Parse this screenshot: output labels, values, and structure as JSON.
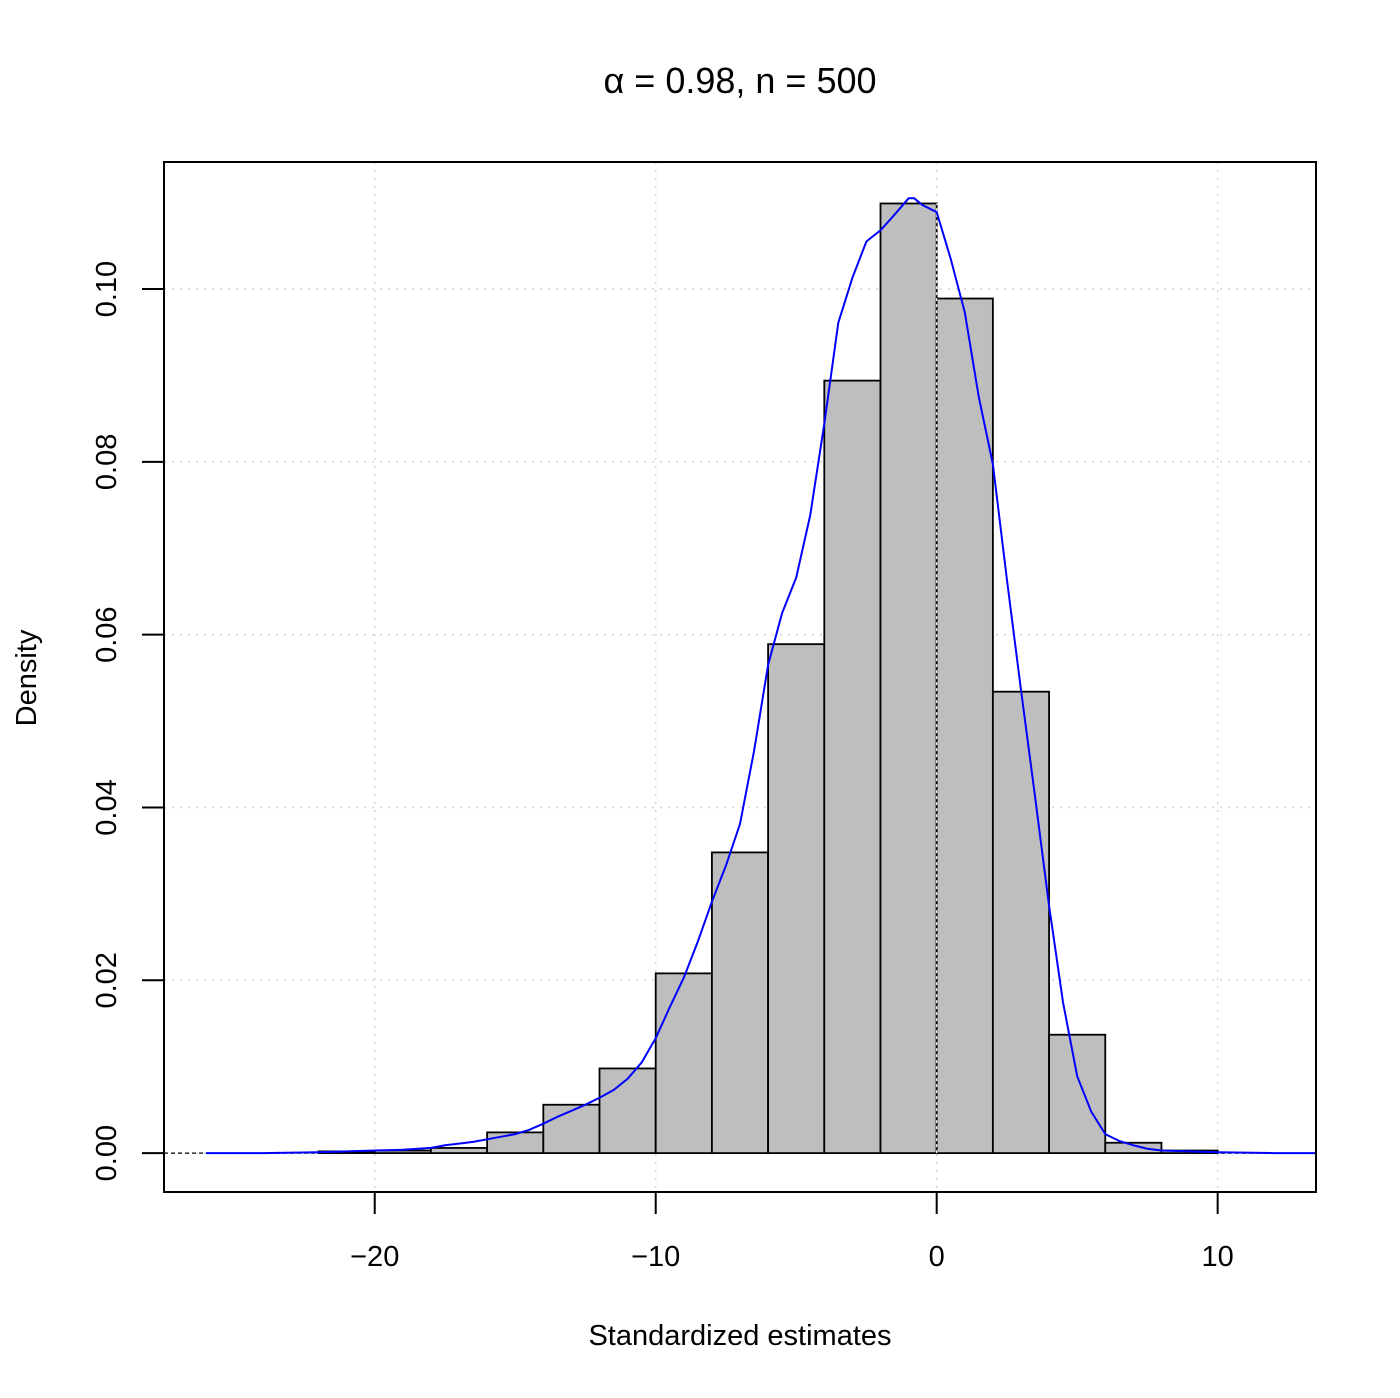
{
  "chart_data": {
    "type": "bar",
    "title": "α = 0.98, n = 500",
    "xlabel": "Standardized estimates",
    "ylabel": "Density",
    "xlim": [
      -27.5,
      13.5
    ],
    "ylim": [
      -0.0045,
      0.1147
    ],
    "x_ticks": [
      -20,
      -10,
      0,
      10
    ],
    "x_tick_labels": [
      "−20",
      "−10",
      "0",
      "10"
    ],
    "y_ticks": [
      0.0,
      0.02,
      0.04,
      0.06,
      0.08,
      0.1
    ],
    "y_tick_labels": [
      "0.00",
      "0.02",
      "0.04",
      "0.06",
      "0.08",
      "0.10"
    ],
    "grid": true,
    "bar_fill": "#bebebe",
    "bins": [
      {
        "x0": -22,
        "x1": -20,
        "density": 0.0002
      },
      {
        "x0": -20,
        "x1": -18,
        "density": 0.0003
      },
      {
        "x0": -18,
        "x1": -16,
        "density": 0.0006
      },
      {
        "x0": -16,
        "x1": -14,
        "density": 0.0024
      },
      {
        "x0": -14,
        "x1": -12,
        "density": 0.0056
      },
      {
        "x0": -12,
        "x1": -10,
        "density": 0.0098
      },
      {
        "x0": -10,
        "x1": -8,
        "density": 0.0208
      },
      {
        "x0": -8,
        "x1": -6,
        "density": 0.0348
      },
      {
        "x0": -6,
        "x1": -4,
        "density": 0.0589
      },
      {
        "x0": -4,
        "x1": -2,
        "density": 0.0894
      },
      {
        "x0": -2,
        "x1": 0,
        "density": 0.1099
      },
      {
        "x0": 0,
        "x1": 2,
        "density": 0.0989
      },
      {
        "x0": 2,
        "x1": 4,
        "density": 0.0534
      },
      {
        "x0": 4,
        "x1": 6,
        "density": 0.0137
      },
      {
        "x0": 6,
        "x1": 8,
        "density": 0.0012
      },
      {
        "x0": 8,
        "x1": 10,
        "density": 0.0003
      }
    ],
    "density_line": {
      "color": "#0000ff",
      "x": [
        -26,
        -24,
        -22,
        -21,
        -20,
        -19,
        -18,
        -17.5,
        -17,
        -16.5,
        -16,
        -15.5,
        -15,
        -14.5,
        -14,
        -13.5,
        -13,
        -12.5,
        -12,
        -11.5,
        -11,
        -10.5,
        -10,
        -9.5,
        -9,
        -8.5,
        -8,
        -7.5,
        -7,
        -6.5,
        -6,
        -5.5,
        -5,
        -4.5,
        -4,
        -3.5,
        -3,
        -2.5,
        -2,
        -1.5,
        -1,
        -0.8,
        -0.5,
        0,
        0.5,
        1,
        1.5,
        2,
        2.5,
        3,
        3.5,
        4,
        4.5,
        5,
        5.5,
        6,
        6.5,
        7,
        7.5,
        8,
        9,
        10,
        12,
        13.5
      ],
      "y": [
        0,
        0,
        0.0001,
        0.0002,
        0.0003,
        0.0004,
        0.0006,
        0.0009,
        0.0011,
        0.0013,
        0.0016,
        0.0019,
        0.0022,
        0.0027,
        0.0034,
        0.0042,
        0.0049,
        0.0056,
        0.0064,
        0.0073,
        0.0086,
        0.0105,
        0.0133,
        0.0169,
        0.0203,
        0.0245,
        0.0291,
        0.0333,
        0.0381,
        0.0465,
        0.0565,
        0.0625,
        0.0666,
        0.0738,
        0.0844,
        0.0961,
        0.1013,
        0.1055,
        0.1068,
        0.1086,
        0.1105,
        0.1105,
        0.1097,
        0.1089,
        0.1035,
        0.0973,
        0.0875,
        0.0797,
        0.0664,
        0.0536,
        0.0413,
        0.0286,
        0.0174,
        0.0089,
        0.0048,
        0.0022,
        0.0014,
        0.0009,
        0.0005,
        0.0003,
        0.0002,
        0.0001,
        0,
        0
      ]
    }
  }
}
